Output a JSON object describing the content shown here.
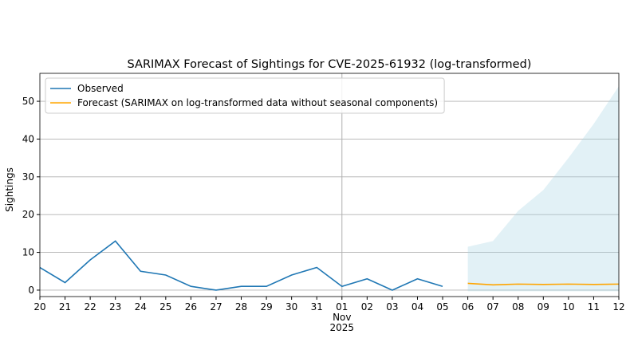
{
  "chart_data": {
    "type": "line",
    "title": "SARIMAX Forecast of Sightings for CVE-2025-61932 (log-transformed)",
    "y_label": "Sightings",
    "xlim": [
      "2025-10-20",
      "2025-11-12"
    ],
    "ylim": [
      -1.7,
      57.4
    ],
    "yticks": [
      0,
      10,
      20,
      30,
      40,
      50
    ],
    "xticks": [
      {
        "value": "2025-10-20",
        "label": "20"
      },
      {
        "value": "2025-10-21",
        "label": "21"
      },
      {
        "value": "2025-10-22",
        "label": "22"
      },
      {
        "value": "2025-10-23",
        "label": "23"
      },
      {
        "value": "2025-10-24",
        "label": "24"
      },
      {
        "value": "2025-10-25",
        "label": "25"
      },
      {
        "value": "2025-10-26",
        "label": "26"
      },
      {
        "value": "2025-10-27",
        "label": "27"
      },
      {
        "value": "2025-10-28",
        "label": "28"
      },
      {
        "value": "2025-10-29",
        "label": "29"
      },
      {
        "value": "2025-10-30",
        "label": "30"
      },
      {
        "value": "2025-10-31",
        "label": "31"
      },
      {
        "value": "2025-11-01",
        "label": "01\nNov\n2025"
      },
      {
        "value": "2025-11-02",
        "label": "02"
      },
      {
        "value": "2025-11-03",
        "label": "03"
      },
      {
        "value": "2025-11-04",
        "label": "04"
      },
      {
        "value": "2025-11-05",
        "label": "05"
      },
      {
        "value": "2025-11-06",
        "label": "06"
      },
      {
        "value": "2025-11-07",
        "label": "07"
      },
      {
        "value": "2025-11-08",
        "label": "08"
      },
      {
        "value": "2025-11-09",
        "label": "09"
      },
      {
        "value": "2025-11-10",
        "label": "10"
      },
      {
        "value": "2025-11-11",
        "label": "11"
      },
      {
        "value": "2025-11-12",
        "label": "12"
      }
    ],
    "grid": true,
    "vline": "2025-11-01",
    "legend": "upper left",
    "series": [
      {
        "name": "Observed",
        "color": "#1f77b4",
        "x": [
          "2025-10-20",
          "2025-10-21",
          "2025-10-22",
          "2025-10-23",
          "2025-10-24",
          "2025-10-25",
          "2025-10-26",
          "2025-10-27",
          "2025-10-28",
          "2025-10-29",
          "2025-10-30",
          "2025-10-31",
          "2025-11-01",
          "2025-11-02",
          "2025-11-03",
          "2025-11-04",
          "2025-11-05"
        ],
        "values": [
          6,
          2,
          8,
          13,
          5,
          4,
          1,
          0,
          1,
          1,
          4,
          6,
          1,
          3,
          0,
          3,
          1
        ]
      },
      {
        "name": "Forecast (SARIMAX on log-transformed data without seasonal components)",
        "color": "#ffa500",
        "x": [
          "2025-11-06",
          "2025-11-07",
          "2025-11-08",
          "2025-11-09",
          "2025-11-10",
          "2025-11-11",
          "2025-11-12"
        ],
        "values": [
          1.8,
          1.4,
          1.6,
          1.5,
          1.6,
          1.5,
          1.6
        ],
        "interval_color": "#add8e6",
        "lower": [
          -0.3,
          -0.3,
          -0.3,
          -0.3,
          -0.3,
          -0.3,
          -0.3
        ],
        "upper": [
          11.5,
          13,
          21,
          26.5,
          35,
          44,
          54
        ]
      }
    ]
  }
}
